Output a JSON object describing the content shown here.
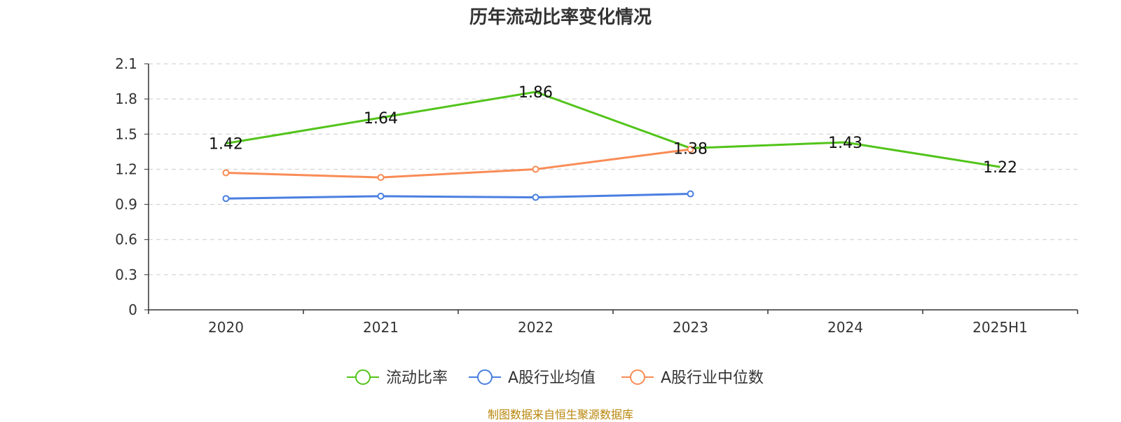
{
  "chart_data": {
    "type": "line",
    "title": "历年流动比率变化情况",
    "categories": [
      "2020",
      "2021",
      "2022",
      "2023",
      "2024",
      "2025H1"
    ],
    "ylim": [
      0,
      2.1
    ],
    "yticks": [
      "0",
      "0.3",
      "0.6",
      "0.9",
      "1.2",
      "1.5",
      "1.8",
      "2.1"
    ],
    "grid": true,
    "legend_position": "bottom",
    "series": [
      {
        "name": "流动比率",
        "color": "#52c41a",
        "values": [
          1.42,
          1.64,
          1.86,
          1.38,
          1.43,
          1.22
        ],
        "labels": [
          "1.42",
          "1.64",
          "1.86",
          "1.38",
          "1.43",
          "1.22"
        ],
        "show_markers": false
      },
      {
        "name": "A股行业均值",
        "color": "#4a7fe0",
        "values": [
          0.95,
          0.97,
          0.96,
          0.99,
          null,
          null
        ],
        "show_markers": true
      },
      {
        "name": "A股行业中位数",
        "color": "#f98c56",
        "values": [
          1.17,
          1.13,
          1.2,
          1.37,
          null,
          null
        ],
        "show_markers": true
      }
    ]
  },
  "source_note": "制图数据来自恒生聚源数据库"
}
